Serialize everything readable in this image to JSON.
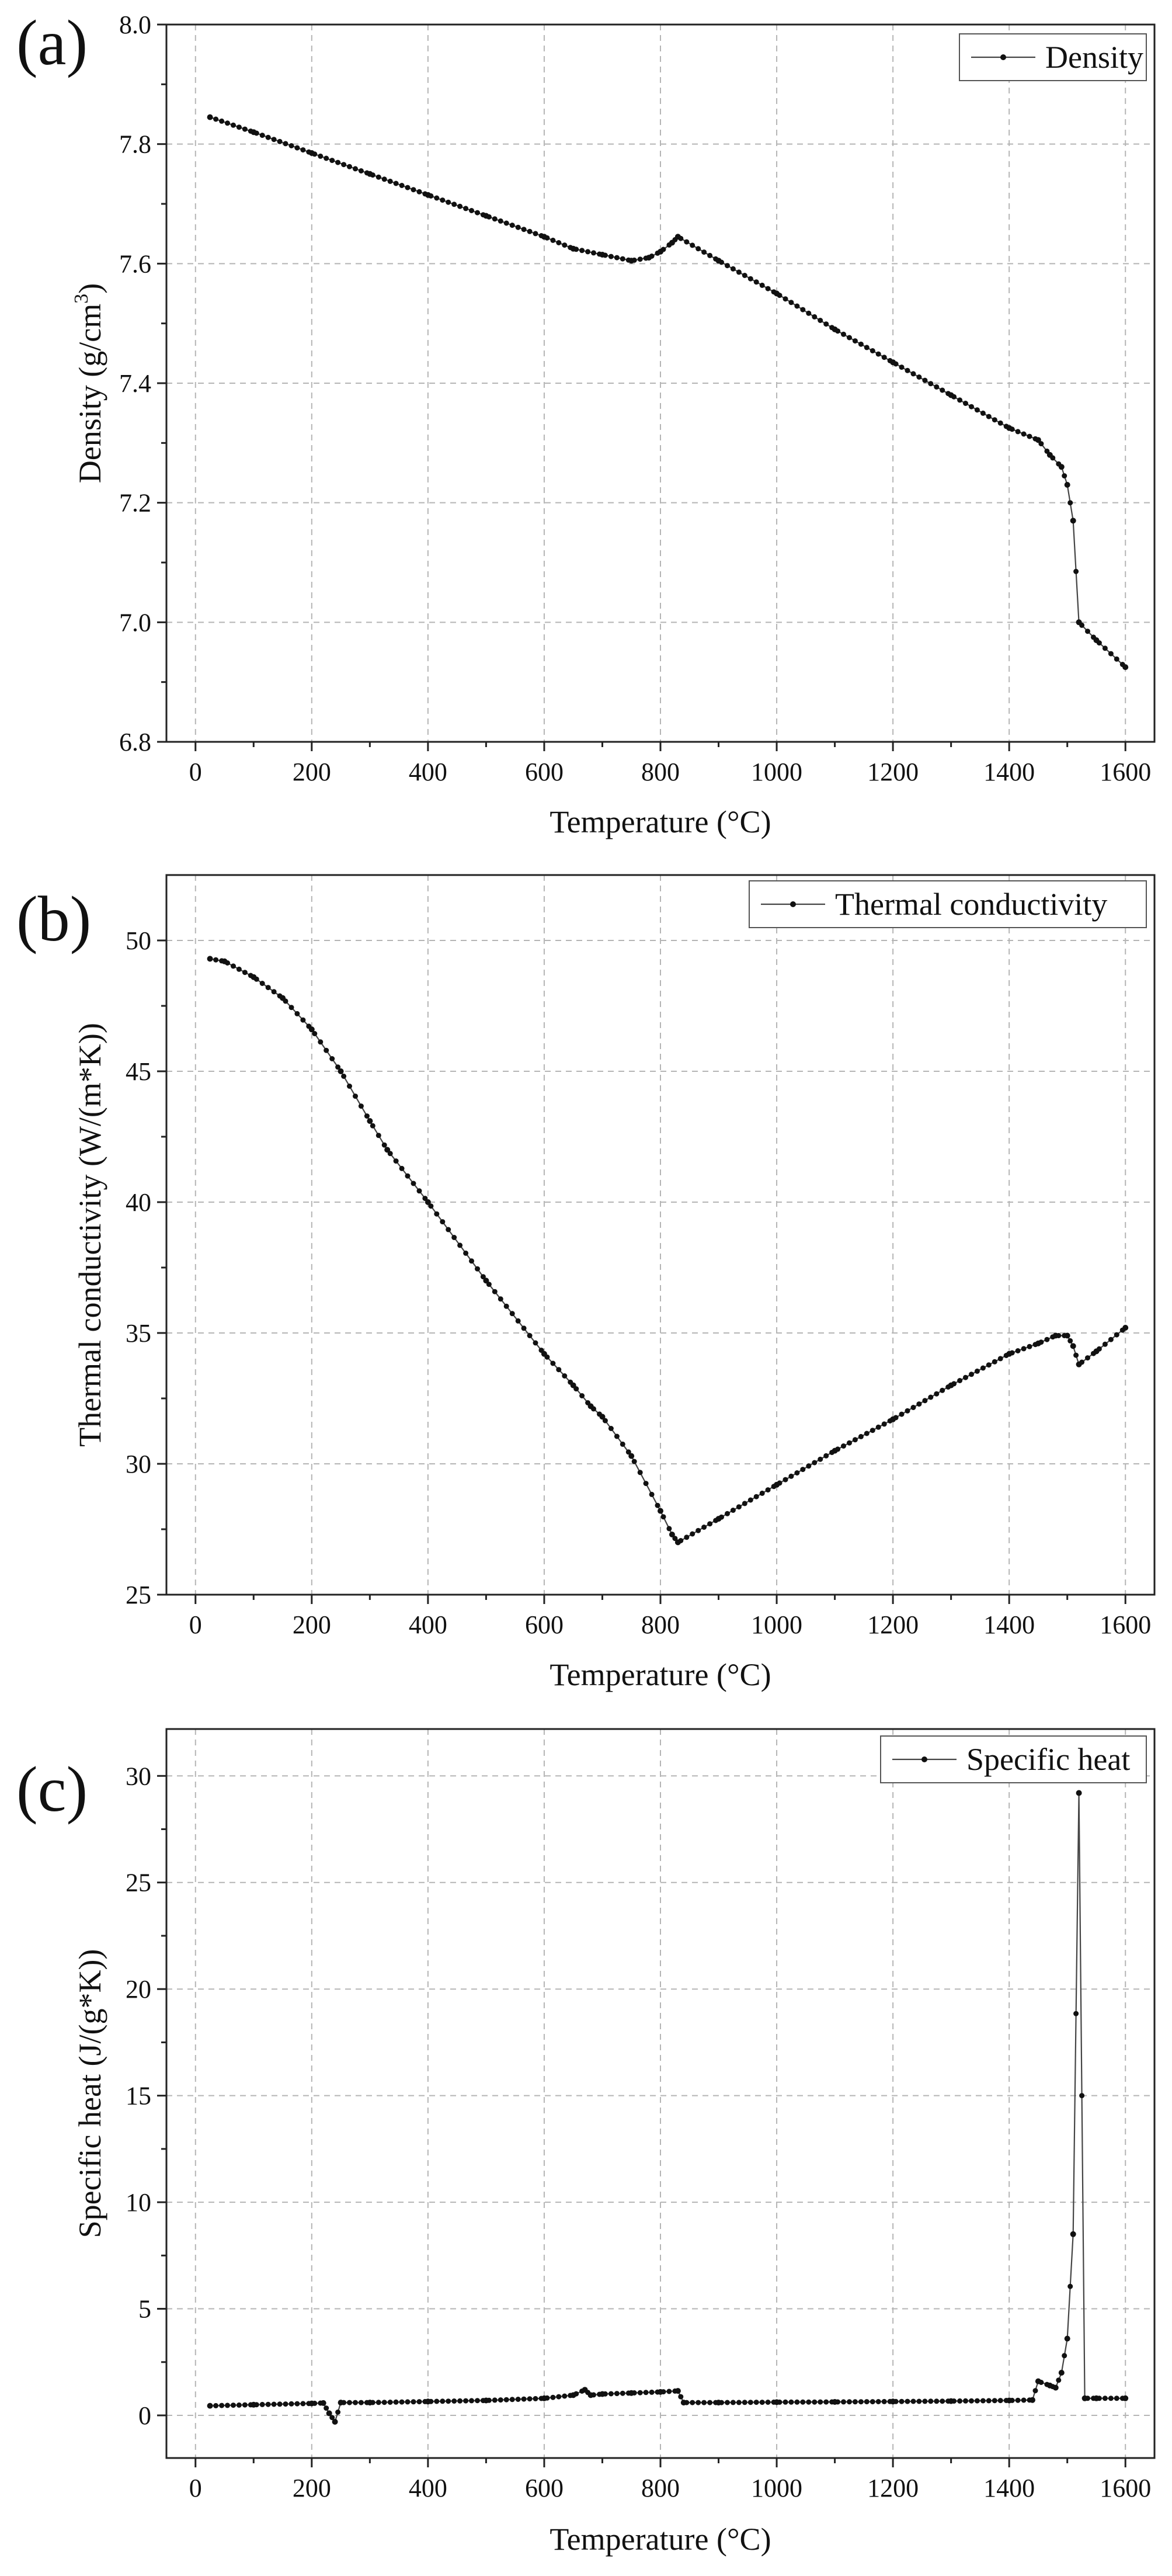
{
  "chart_data": [
    {
      "type": "line",
      "panel_label": "(a)",
      "title": "",
      "xlabel": "Temperature (°C)",
      "ylabel": "Density (g/cm",
      "ylabel_sup": "3",
      "ylabel_end": ")",
      "xlim": [
        -50,
        1650
      ],
      "ylim": [
        6.8,
        8.0
      ],
      "xticks": [
        0,
        200,
        400,
        600,
        800,
        1000,
        1200,
        1400,
        1600
      ],
      "yticks": [
        6.8,
        7.0,
        7.2,
        7.4,
        7.6,
        7.8,
        8.0
      ],
      "ytick_labels": [
        "6.8",
        "7.0",
        "7.2",
        "7.4",
        "7.6",
        "7.8",
        "8.0"
      ],
      "grid": true,
      "legend_position": "top-right",
      "series": [
        {
          "name": "Density",
          "x": [
            25,
            100,
            200,
            300,
            400,
            500,
            600,
            650,
            700,
            750,
            780,
            800,
            820,
            830,
            900,
            1000,
            1100,
            1200,
            1300,
            1400,
            1450,
            1470,
            1490,
            1500,
            1510,
            1520,
            1550,
            1600
          ],
          "y": [
            7.845,
            7.82,
            7.785,
            7.75,
            7.715,
            7.68,
            7.645,
            7.625,
            7.615,
            7.605,
            7.61,
            7.62,
            7.635,
            7.645,
            7.605,
            7.55,
            7.49,
            7.435,
            7.38,
            7.325,
            7.305,
            7.28,
            7.26,
            7.23,
            7.17,
            7.0,
            6.97,
            6.925
          ]
        }
      ]
    },
    {
      "type": "line",
      "panel_label": "(b)",
      "title": "",
      "xlabel": "Temperature (°C)",
      "ylabel": "Thermal conductivity (W/(m*K))",
      "xlim": [
        -50,
        1650
      ],
      "ylim": [
        25,
        52.5
      ],
      "xticks": [
        0,
        200,
        400,
        600,
        800,
        1000,
        1200,
        1400,
        1600
      ],
      "yticks": [
        25,
        30,
        35,
        40,
        45,
        50
      ],
      "ytick_labels": [
        "25",
        "30",
        "35",
        "40",
        "45",
        "50"
      ],
      "grid": true,
      "legend_position": "top-right",
      "series": [
        {
          "name": "Thermal conductivity",
          "x": [
            25,
            50,
            100,
            150,
            200,
            250,
            300,
            330,
            400,
            500,
            600,
            650,
            680,
            700,
            750,
            800,
            820,
            830,
            900,
            1000,
            1100,
            1200,
            1300,
            1400,
            1450,
            1480,
            1500,
            1510,
            1520,
            1550,
            1600
          ],
          "y": [
            49.3,
            49.2,
            48.6,
            47.8,
            46.6,
            45.0,
            43.1,
            42.0,
            40.0,
            37.0,
            34.2,
            33.0,
            32.2,
            31.8,
            30.3,
            28.2,
            27.3,
            27.0,
            27.9,
            29.2,
            30.5,
            31.7,
            33.0,
            34.2,
            34.6,
            34.9,
            34.9,
            34.5,
            33.8,
            34.3,
            35.2
          ]
        }
      ]
    },
    {
      "type": "line",
      "panel_label": "(c)",
      "title": "",
      "xlabel": "Temperature (°C)",
      "ylabel": "Specific heat (J/(g*K))",
      "xlim": [
        -50,
        1650
      ],
      "ylim": [
        -2,
        32.2
      ],
      "xticks": [
        0,
        200,
        400,
        600,
        800,
        1000,
        1200,
        1400,
        1600
      ],
      "yticks": [
        0,
        5,
        10,
        15,
        20,
        25,
        30
      ],
      "ytick_labels": [
        "0",
        "5",
        "10",
        "15",
        "20",
        "25",
        "30"
      ],
      "grid": true,
      "legend_position": "top-right",
      "series": [
        {
          "name": "Specific heat",
          "x": [
            25,
            100,
            200,
            220,
            230,
            240,
            250,
            300,
            400,
            500,
            600,
            650,
            670,
            680,
            700,
            750,
            800,
            830,
            840,
            900,
            1000,
            1100,
            1200,
            1300,
            1400,
            1440,
            1450,
            1470,
            1480,
            1490,
            1500,
            1510,
            1520,
            1530,
            1550,
            1600
          ],
          "y": [
            0.45,
            0.5,
            0.56,
            0.58,
            0.1,
            -0.3,
            0.6,
            0.6,
            0.65,
            0.7,
            0.8,
            0.95,
            1.2,
            0.95,
            1.0,
            1.05,
            1.1,
            1.15,
            0.6,
            0.6,
            0.62,
            0.63,
            0.65,
            0.67,
            0.7,
            0.72,
            1.6,
            1.4,
            1.3,
            2.0,
            3.6,
            8.5,
            29.2,
            0.8,
            0.8,
            0.8
          ]
        }
      ]
    }
  ]
}
